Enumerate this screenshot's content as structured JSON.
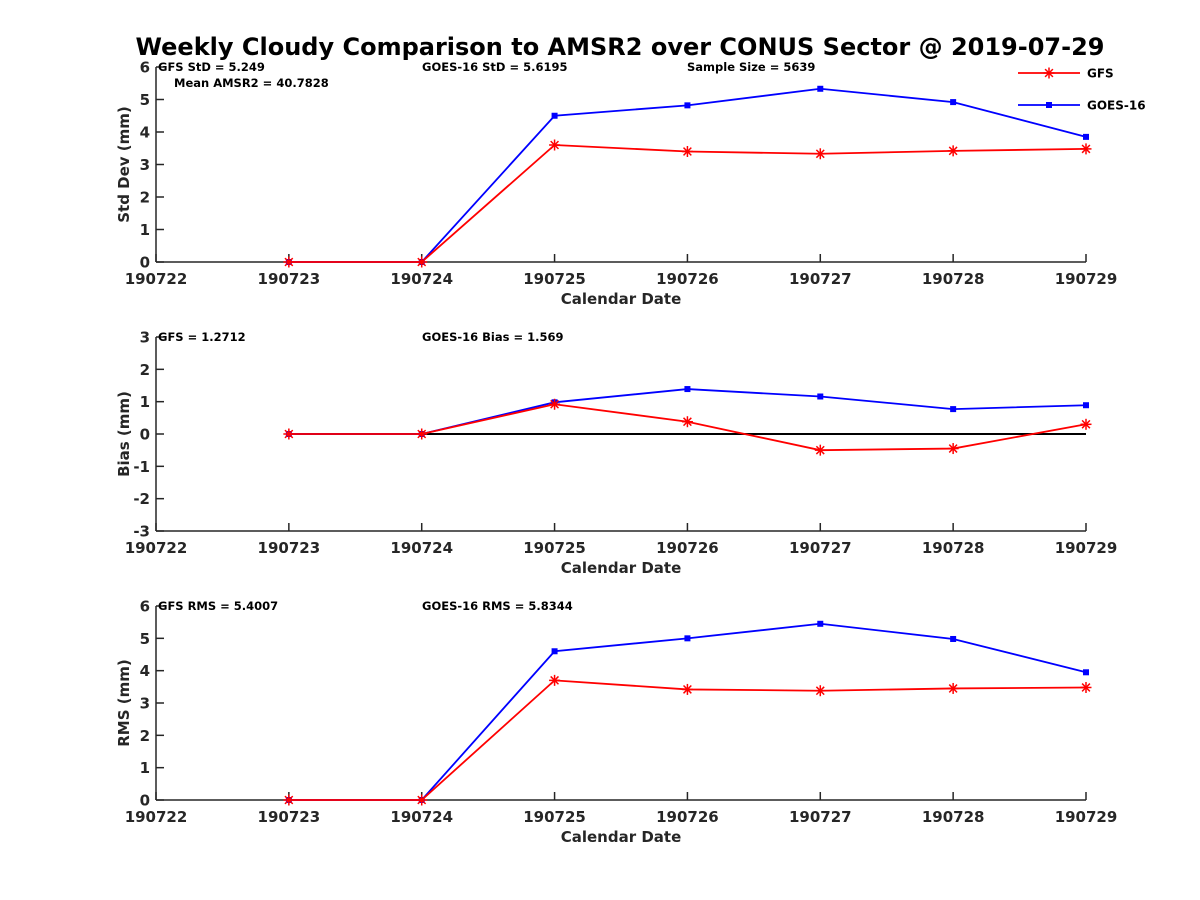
{
  "chart_data": {
    "type": "line",
    "title": "Weekly Cloudy Comparison to AMSR2 over CONUS Sector @ 2019-07-29",
    "legend": {
      "placement": "top-right",
      "entries": [
        {
          "name": "GFS",
          "color": "#ff0000",
          "marker": "asterisk"
        },
        {
          "name": "GOES-16",
          "color": "#0000ff",
          "marker": "square"
        }
      ]
    },
    "panels": [
      {
        "id": "std",
        "xlabel": "Calendar Date",
        "ylabel": "Std Dev (mm)",
        "xticks": [
          "190722",
          "190723",
          "190724",
          "190725",
          "190726",
          "190727",
          "190728",
          "190729"
        ],
        "ylim": [
          0,
          6
        ],
        "yticks": [
          0,
          1,
          2,
          3,
          4,
          5,
          6
        ],
        "zero_line": false,
        "annotations": {
          "left": "GFS StD = 5.249",
          "left2": "Mean AMSR2 = 40.7828",
          "middle": "GOES-16 StD = 5.6195",
          "right": "Sample Size = 5639"
        },
        "series": [
          {
            "name": "GFS",
            "x": [
              1,
              2,
              3,
              4,
              5,
              6,
              7
            ],
            "values": [
              0,
              0,
              3.6,
              3.4,
              3.33,
              3.42,
              3.48
            ]
          },
          {
            "name": "GOES-16",
            "x": [
              1,
              2,
              3,
              4,
              5,
              6,
              7
            ],
            "values": [
              0,
              0,
              4.5,
              4.82,
              5.33,
              4.92,
              3.85
            ]
          }
        ]
      },
      {
        "id": "bias",
        "xlabel": "Calendar Date",
        "ylabel": "Bias (mm)",
        "xticks": [
          "190722",
          "190723",
          "190724",
          "190725",
          "190726",
          "190727",
          "190728",
          "190729"
        ],
        "ylim": [
          -3,
          3
        ],
        "yticks": [
          -3,
          -2,
          -1,
          0,
          1,
          2,
          3
        ],
        "zero_line": true,
        "annotations": {
          "left": "GFS = 1.2712",
          "middle": "GOES-16 Bias  = 1.569"
        },
        "series": [
          {
            "name": "GFS",
            "x": [
              1,
              2,
              3,
              4,
              5,
              6,
              7
            ],
            "values": [
              0,
              0,
              0.92,
              0.38,
              -0.5,
              -0.45,
              0.3
            ]
          },
          {
            "name": "GOES-16",
            "x": [
              1,
              2,
              3,
              4,
              5,
              6,
              7
            ],
            "values": [
              0,
              0,
              0.98,
              1.39,
              1.16,
              0.77,
              0.89
            ]
          }
        ]
      },
      {
        "id": "rms",
        "xlabel": "Calendar Date",
        "ylabel": "RMS (mm)",
        "xticks": [
          "190722",
          "190723",
          "190724",
          "190725",
          "190726",
          "190727",
          "190728",
          "190729"
        ],
        "ylim": [
          0,
          6
        ],
        "yticks": [
          0,
          1,
          2,
          3,
          4,
          5,
          6
        ],
        "zero_line": false,
        "annotations": {
          "left": "GFS RMS = 5.4007",
          "middle": "GOES-16 RMS = 5.8344"
        },
        "series": [
          {
            "name": "GFS",
            "x": [
              1,
              2,
              3,
              4,
              5,
              6,
              7
            ],
            "values": [
              0,
              0,
              3.7,
              3.42,
              3.38,
              3.45,
              3.48
            ]
          },
          {
            "name": "GOES-16",
            "x": [
              1,
              2,
              3,
              4,
              5,
              6,
              7
            ],
            "values": [
              0,
              0,
              4.6,
              5.0,
              5.45,
              4.98,
              3.95
            ]
          }
        ]
      }
    ]
  }
}
